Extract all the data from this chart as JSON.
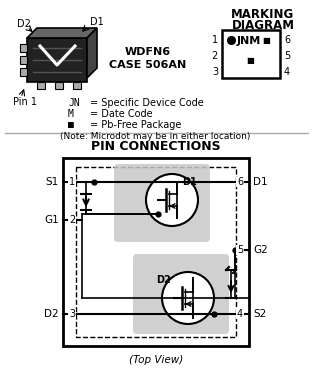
{
  "title_top": "MARKING\nDIAGRAM",
  "case_text": "WDFN6\nCASE 506AN",
  "marking_labels_left": [
    "1",
    "2",
    "3"
  ],
  "marking_labels_right": [
    "6",
    "5",
    "4"
  ],
  "legend_lines": [
    [
      "JN",
      "= Specific Device Code"
    ],
    [
      "M",
      "= Date Code"
    ],
    [
      "■",
      "= Pb-Free Package"
    ]
  ],
  "note_line": "(Note: Microdot may be in either location)",
  "pin_conn_title": "PIN CONNECTIONS",
  "pin_left_labels": [
    "S1",
    "G1",
    "D2"
  ],
  "pin_right_labels": [
    "D1",
    "G2",
    "S2"
  ],
  "pin_numbers_left": [
    "1",
    "2",
    "3"
  ],
  "pin_numbers_right": [
    "6",
    "5",
    "4"
  ],
  "top_view_label": "(Top View)",
  "bg_color": "#ffffff",
  "line_color": "#000000",
  "gray_fill": "#c8c8c8",
  "divider_color": "#aaaaaa"
}
